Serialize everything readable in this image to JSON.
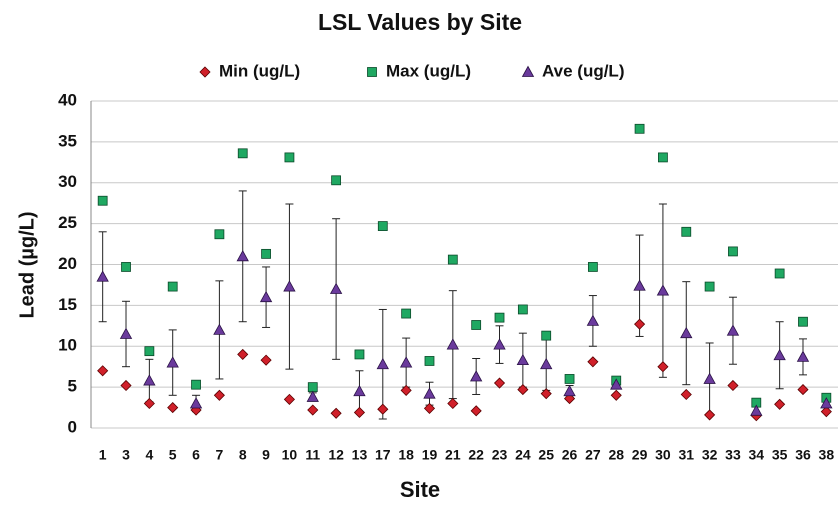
{
  "chart_data": {
    "type": "scatter",
    "title": "LSL Values by Site",
    "x_label": "Site",
    "y_label": "Lead (µg/L)",
    "categories": [
      "1",
      "3",
      "4",
      "5",
      "6",
      "7",
      "8",
      "9",
      "10",
      "11",
      "12",
      "13",
      "17",
      "18",
      "19",
      "21",
      "22",
      "23",
      "24",
      "25",
      "26",
      "27",
      "28",
      "29",
      "30",
      "31",
      "32",
      "33",
      "34",
      "35",
      "36",
      "38"
    ],
    "series": [
      {
        "name": "Min (ug/L)",
        "color": "#d0202a",
        "marker": "diamond",
        "values": [
          7.0,
          5.2,
          3.0,
          2.5,
          2.2,
          4.0,
          9.0,
          8.3,
          3.5,
          2.2,
          1.8,
          1.9,
          2.3,
          4.6,
          2.4,
          3.0,
          2.1,
          5.5,
          4.7,
          4.2,
          3.6,
          8.1,
          4.0,
          12.7,
          7.5,
          4.1,
          1.6,
          5.2,
          1.5,
          2.9,
          4.7,
          2.0
        ]
      },
      {
        "name": "Max (ug/L)",
        "color": "#1fa862",
        "marker": "square",
        "values": [
          27.8,
          19.7,
          9.4,
          17.3,
          5.3,
          23.7,
          33.6,
          21.3,
          33.1,
          5.0,
          30.3,
          9.0,
          24.7,
          14.0,
          8.2,
          20.6,
          12.6,
          13.5,
          14.5,
          11.3,
          6.0,
          19.7,
          5.8,
          36.6,
          33.1,
          24.0,
          17.3,
          21.6,
          3.1,
          18.9,
          13.0,
          3.7
        ]
      },
      {
        "name": "Ave (ug/L)",
        "color": "#6a3a9c",
        "marker": "triangle",
        "values": [
          18.5,
          11.5,
          5.8,
          8.0,
          3.0,
          12.0,
          21.0,
          16.0,
          17.3,
          3.8,
          17.0,
          4.5,
          7.8,
          8.0,
          4.2,
          10.2,
          6.3,
          10.2,
          8.3,
          7.8,
          4.5,
          13.1,
          5.3,
          17.4,
          16.8,
          11.6,
          6.0,
          11.9,
          2.1,
          8.9,
          8.7,
          3.0
        ],
        "errors": [
          5.5,
          4,
          2.6,
          4,
          1,
          6,
          8,
          3.7,
          10.1,
          0.5,
          8.6,
          2.5,
          6.7,
          3,
          1.4,
          6.6,
          2.2,
          2.3,
          3.3,
          3.2,
          0.7,
          3.1,
          0.5,
          6.2,
          10.6,
          6.3,
          4.4,
          4.1,
          0.5,
          4.1,
          2.2,
          0.5
        ]
      }
    ],
    "ylim": [
      0,
      40
    ],
    "yticks": [
      0,
      5,
      10,
      15,
      20,
      25,
      30,
      35,
      40
    ],
    "grid": true
  }
}
